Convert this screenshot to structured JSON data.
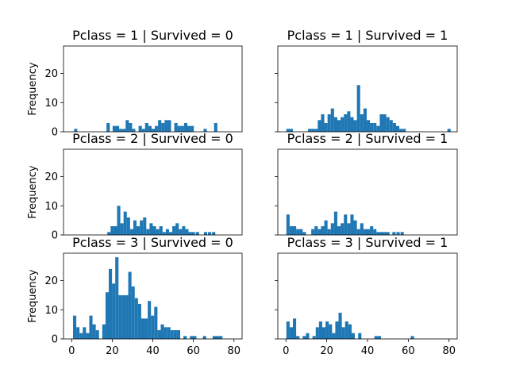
{
  "chart_data": {
    "type": "bar",
    "color": "#1f77b4",
    "shared_x_range": [
      -4,
      84
    ],
    "shared_y_range": [
      0,
      29.4
    ],
    "x_ticks": [
      0,
      20,
      40,
      60,
      80
    ],
    "y_ticks": [
      0,
      10,
      20
    ],
    "ylabel": "Frequency",
    "bin_width": 1.6,
    "panels": [
      {
        "title": "Pclass = 1 | Survived = 0",
        "bars": [
          {
            "x": 2,
            "v": 1
          },
          {
            "x": 18,
            "v": 3
          },
          {
            "x": 21,
            "v": 2
          },
          {
            "x": 22.6,
            "v": 2
          },
          {
            "x": 24.2,
            "v": 1
          },
          {
            "x": 25.8,
            "v": 1
          },
          {
            "x": 27.4,
            "v": 4
          },
          {
            "x": 29,
            "v": 3
          },
          {
            "x": 30.6,
            "v": 1
          },
          {
            "x": 33.8,
            "v": 2
          },
          {
            "x": 35.4,
            "v": 1
          },
          {
            "x": 37,
            "v": 3
          },
          {
            "x": 38.6,
            "v": 2
          },
          {
            "x": 40.2,
            "v": 1
          },
          {
            "x": 41.8,
            "v": 2
          },
          {
            "x": 43.4,
            "v": 4
          },
          {
            "x": 45,
            "v": 3
          },
          {
            "x": 46.6,
            "v": 4
          },
          {
            "x": 48.2,
            "v": 4
          },
          {
            "x": 51.4,
            "v": 3
          },
          {
            "x": 53,
            "v": 2
          },
          {
            "x": 54.6,
            "v": 2
          },
          {
            "x": 56.2,
            "v": 3
          },
          {
            "x": 57.8,
            "v": 2
          },
          {
            "x": 59.4,
            "v": 2
          },
          {
            "x": 65.8,
            "v": 1
          },
          {
            "x": 71,
            "v": 3
          }
        ]
      },
      {
        "title": "Pclass = 1 | Survived = 1",
        "bars": [
          {
            "x": 1,
            "v": 1
          },
          {
            "x": 2.6,
            "v": 1
          },
          {
            "x": 11.6,
            "v": 1
          },
          {
            "x": 13.2,
            "v": 1
          },
          {
            "x": 14.8,
            "v": 1
          },
          {
            "x": 16.4,
            "v": 4
          },
          {
            "x": 18,
            "v": 6
          },
          {
            "x": 19.6,
            "v": 3
          },
          {
            "x": 21.2,
            "v": 6
          },
          {
            "x": 22.8,
            "v": 8
          },
          {
            "x": 24.4,
            "v": 5
          },
          {
            "x": 26,
            "v": 4
          },
          {
            "x": 27.6,
            "v": 5
          },
          {
            "x": 29.2,
            "v": 6
          },
          {
            "x": 30.8,
            "v": 7
          },
          {
            "x": 32.4,
            "v": 5
          },
          {
            "x": 34,
            "v": 4
          },
          {
            "x": 35.6,
            "v": 16
          },
          {
            "x": 37.2,
            "v": 6
          },
          {
            "x": 38.8,
            "v": 8
          },
          {
            "x": 40.4,
            "v": 4
          },
          {
            "x": 42,
            "v": 3
          },
          {
            "x": 43.6,
            "v": 3
          },
          {
            "x": 45.2,
            "v": 2
          },
          {
            "x": 46.8,
            "v": 6
          },
          {
            "x": 48.4,
            "v": 6
          },
          {
            "x": 50,
            "v": 5
          },
          {
            "x": 51.6,
            "v": 4
          },
          {
            "x": 53.2,
            "v": 3
          },
          {
            "x": 54.8,
            "v": 2
          },
          {
            "x": 56.4,
            "v": 1
          },
          {
            "x": 58,
            "v": 1
          },
          {
            "x": 80,
            "v": 1
          }
        ]
      },
      {
        "title": "Pclass = 2 | Survived = 0",
        "bars": [
          {
            "x": 18.4,
            "v": 1
          },
          {
            "x": 20,
            "v": 3
          },
          {
            "x": 21.6,
            "v": 3
          },
          {
            "x": 23.2,
            "v": 10
          },
          {
            "x": 24.8,
            "v": 4
          },
          {
            "x": 26.4,
            "v": 8
          },
          {
            "x": 28,
            "v": 6
          },
          {
            "x": 29.6,
            "v": 2
          },
          {
            "x": 31.2,
            "v": 5
          },
          {
            "x": 32.8,
            "v": 3
          },
          {
            "x": 34.4,
            "v": 5
          },
          {
            "x": 36,
            "v": 6
          },
          {
            "x": 37.6,
            "v": 2
          },
          {
            "x": 39.2,
            "v": 4
          },
          {
            "x": 40.8,
            "v": 3
          },
          {
            "x": 42.4,
            "v": 2
          },
          {
            "x": 44,
            "v": 3
          },
          {
            "x": 45.6,
            "v": 1
          },
          {
            "x": 47.2,
            "v": 2
          },
          {
            "x": 48.8,
            "v": 1
          },
          {
            "x": 50.4,
            "v": 3
          },
          {
            "x": 52,
            "v": 4
          },
          {
            "x": 53.6,
            "v": 2
          },
          {
            "x": 55.2,
            "v": 3
          },
          {
            "x": 56.8,
            "v": 2
          },
          {
            "x": 58.4,
            "v": 1
          },
          {
            "x": 60,
            "v": 1
          },
          {
            "x": 62,
            "v": 1
          },
          {
            "x": 66,
            "v": 1
          },
          {
            "x": 68,
            "v": 1
          },
          {
            "x": 70,
            "v": 1
          }
        ]
      },
      {
        "title": "Pclass = 2 | Survived = 1",
        "bars": [
          {
            "x": 1,
            "v": 7
          },
          {
            "x": 2.6,
            "v": 3
          },
          {
            "x": 4.2,
            "v": 3
          },
          {
            "x": 5.8,
            "v": 2
          },
          {
            "x": 7.4,
            "v": 2
          },
          {
            "x": 9,
            "v": 1
          },
          {
            "x": 13.2,
            "v": 2
          },
          {
            "x": 14.8,
            "v": 3
          },
          {
            "x": 16.4,
            "v": 2
          },
          {
            "x": 18,
            "v": 3
          },
          {
            "x": 19.6,
            "v": 5
          },
          {
            "x": 21.2,
            "v": 2
          },
          {
            "x": 22.8,
            "v": 4
          },
          {
            "x": 24.4,
            "v": 8
          },
          {
            "x": 26,
            "v": 3
          },
          {
            "x": 27.6,
            "v": 4
          },
          {
            "x": 29.2,
            "v": 7
          },
          {
            "x": 30.8,
            "v": 4
          },
          {
            "x": 32.4,
            "v": 7
          },
          {
            "x": 34,
            "v": 5
          },
          {
            "x": 35.6,
            "v": 2
          },
          {
            "x": 37.2,
            "v": 4
          },
          {
            "x": 38.8,
            "v": 2
          },
          {
            "x": 40.4,
            "v": 2
          },
          {
            "x": 42,
            "v": 3
          },
          {
            "x": 43.6,
            "v": 2
          },
          {
            "x": 45.2,
            "v": 1
          },
          {
            "x": 46.8,
            "v": 1
          },
          {
            "x": 48.4,
            "v": 1
          },
          {
            "x": 50,
            "v": 1
          },
          {
            "x": 53,
            "v": 1
          },
          {
            "x": 55,
            "v": 1
          },
          {
            "x": 57,
            "v": 1
          }
        ]
      },
      {
        "title": "Pclass = 3 | Survived = 0",
        "bars": [
          {
            "x": 1.5,
            "v": 8
          },
          {
            "x": 3.1,
            "v": 4
          },
          {
            "x": 4.7,
            "v": 2
          },
          {
            "x": 6.3,
            "v": 4
          },
          {
            "x": 7.9,
            "v": 2
          },
          {
            "x": 9.5,
            "v": 8
          },
          {
            "x": 11.1,
            "v": 5
          },
          {
            "x": 12.7,
            "v": 3
          },
          {
            "x": 15.9,
            "v": 5
          },
          {
            "x": 17.5,
            "v": 16
          },
          {
            "x": 19.1,
            "v": 24
          },
          {
            "x": 20.7,
            "v": 19
          },
          {
            "x": 22.3,
            "v": 28
          },
          {
            "x": 23.9,
            "v": 15
          },
          {
            "x": 25.5,
            "v": 15
          },
          {
            "x": 27.1,
            "v": 15
          },
          {
            "x": 28.7,
            "v": 23
          },
          {
            "x": 30.3,
            "v": 18
          },
          {
            "x": 31.9,
            "v": 14
          },
          {
            "x": 33.5,
            "v": 12
          },
          {
            "x": 35.1,
            "v": 7
          },
          {
            "x": 36.7,
            "v": 7
          },
          {
            "x": 38.3,
            "v": 13
          },
          {
            "x": 39.9,
            "v": 8
          },
          {
            "x": 41.5,
            "v": 11
          },
          {
            "x": 43.1,
            "v": 3
          },
          {
            "x": 44.7,
            "v": 5
          },
          {
            "x": 46.3,
            "v": 4
          },
          {
            "x": 47.9,
            "v": 4
          },
          {
            "x": 49.5,
            "v": 3
          },
          {
            "x": 51.1,
            "v": 3
          },
          {
            "x": 52.7,
            "v": 3
          },
          {
            "x": 55.9,
            "v": 1
          },
          {
            "x": 59.1,
            "v": 1
          },
          {
            "x": 60.7,
            "v": 1
          },
          {
            "x": 65.5,
            "v": 1
          },
          {
            "x": 70.3,
            "v": 1
          },
          {
            "x": 71.9,
            "v": 1
          },
          {
            "x": 73.5,
            "v": 1
          }
        ]
      },
      {
        "title": "Pclass = 3 | Survived = 1",
        "bars": [
          {
            "x": 1,
            "v": 6
          },
          {
            "x": 2.6,
            "v": 4
          },
          {
            "x": 4.2,
            "v": 7
          },
          {
            "x": 5.8,
            "v": 1
          },
          {
            "x": 9,
            "v": 1
          },
          {
            "x": 10.6,
            "v": 2
          },
          {
            "x": 13.8,
            "v": 1
          },
          {
            "x": 15.4,
            "v": 4
          },
          {
            "x": 17,
            "v": 6
          },
          {
            "x": 18.6,
            "v": 4
          },
          {
            "x": 20.2,
            "v": 6
          },
          {
            "x": 21.8,
            "v": 5
          },
          {
            "x": 23.4,
            "v": 2
          },
          {
            "x": 25,
            "v": 6
          },
          {
            "x": 26.6,
            "v": 9
          },
          {
            "x": 28.2,
            "v": 4
          },
          {
            "x": 29.8,
            "v": 6
          },
          {
            "x": 31.4,
            "v": 5
          },
          {
            "x": 33,
            "v": 2
          },
          {
            "x": 36.2,
            "v": 2
          },
          {
            "x": 44.2,
            "v": 1
          },
          {
            "x": 45.8,
            "v": 1
          },
          {
            "x": 62,
            "v": 1
          }
        ]
      }
    ]
  }
}
